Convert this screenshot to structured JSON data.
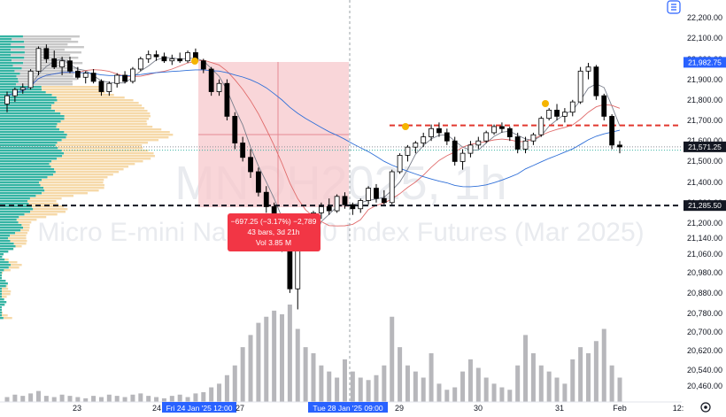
{
  "chart_title": "MNQH2025, 1h",
  "chart_subtitle": "Micro E-mini Nasdaq-100 Index Futures (Mar 2025)",
  "colors": {
    "up": "#ffffff",
    "down": "#000000",
    "candle_outline": "#000000",
    "volume": "#b7b7bb",
    "profile_teal": "#35b4a3",
    "profile_cream": "#f6d9a9",
    "profile_grey": "#c8c8c8",
    "range_box": "#f7c8cc",
    "range_label_bg": "#f23645",
    "red_level": "#e2372f",
    "black_level": "#131722",
    "price_tag": "#2962ff",
    "dashed_cursor": "#9aa0a6"
  },
  "price_axis": {
    "ticks": [
      "22,200.00",
      "22,100.00",
      "22,000.00",
      "21,900.00",
      "21,800.00",
      "21,700.00",
      "21,600.00",
      "21,500.00",
      "21,400.00",
      "21,300.00",
      "21,200.00",
      "21,140.00",
      "21,060.00",
      "20,980.00",
      "20,880.00",
      "20,780.00",
      "20,700.00",
      "20,620.00",
      "20,540.00",
      "20,460.00"
    ],
    "tags": [
      {
        "label": "21,982.75",
        "price": 21982.75
      },
      {
        "label": "21,571.25",
        "price": 21571.25
      },
      {
        "label": "21,285.50",
        "price": 21285.5
      }
    ]
  },
  "time_axis": {
    "labels": [
      "23",
      "24",
      "27",
      "29",
      "30",
      "31",
      "Feb",
      "12:"
    ],
    "highlight_start": "Fri 24 Jan '25   12:00",
    "highlight_end": "Tue 28 Jan '25   09:00"
  },
  "measure_label": {
    "line1": "−697.25 (−3.17%) −2,789",
    "line2": "43 bars, 3d 21h",
    "line3": "Vol 3.85 M"
  },
  "chart_data": {
    "type": "candlestick",
    "title": "MNQH2025, 1h",
    "subtitle": "Micro E-mini Nasdaq-100 Index Futures (Mar 2025)",
    "y_range": [
      20400,
      22250
    ],
    "levels": [
      {
        "price": 21676,
        "style": "dashed",
        "color": "red"
      },
      {
        "price": 21285.5,
        "style": "dashed",
        "color": "black"
      },
      {
        "price": 21571.25,
        "style": "dotted",
        "color": "grey"
      },
      {
        "price": 21555,
        "style": "dotted",
        "color": "teal"
      }
    ],
    "candles": [
      [
        21780,
        21840,
        21740,
        21820
      ],
      [
        21820,
        21860,
        21790,
        21850
      ],
      [
        21850,
        21880,
        21830,
        21860
      ],
      [
        21860,
        21950,
        21850,
        21940
      ],
      [
        21940,
        22060,
        21920,
        22050
      ],
      [
        22050,
        22070,
        21980,
        22000
      ],
      [
        22000,
        22040,
        21950,
        21960
      ],
      [
        21960,
        22010,
        21920,
        21990
      ],
      [
        21990,
        22010,
        21930,
        21940
      ],
      [
        21940,
        21960,
        21900,
        21910
      ],
      [
        21910,
        21940,
        21880,
        21930
      ],
      [
        21930,
        21950,
        21880,
        21890
      ],
      [
        21890,
        21900,
        21820,
        21840
      ],
      [
        21840,
        21890,
        21820,
        21880
      ],
      [
        21880,
        21930,
        21860,
        21920
      ],
      [
        21920,
        21940,
        21880,
        21890
      ],
      [
        21890,
        21960,
        21880,
        21950
      ],
      [
        21950,
        22010,
        21940,
        22000
      ],
      [
        22000,
        22040,
        21980,
        22020
      ],
      [
        22020,
        22040,
        21990,
        22010
      ],
      [
        22010,
        22030,
        21980,
        21990
      ],
      [
        21990,
        22020,
        21970,
        22000
      ],
      [
        22000,
        22030,
        21980,
        21990
      ],
      [
        21990,
        22040,
        21980,
        22030
      ],
      [
        22030,
        22050,
        21980,
        21990
      ],
      [
        21990,
        22000,
        21930,
        21950
      ],
      [
        21950,
        21960,
        21820,
        21840
      ],
      [
        21840,
        21900,
        21820,
        21880
      ],
      [
        21880,
        21900,
        21700,
        21720
      ],
      [
        21720,
        21740,
        21560,
        21590
      ],
      [
        21590,
        21620,
        21500,
        21520
      ],
      [
        21520,
        21560,
        21420,
        21450
      ],
      [
        21450,
        21470,
        21330,
        21350
      ],
      [
        21350,
        21380,
        21250,
        21280
      ],
      [
        21280,
        21300,
        21180,
        21200
      ],
      [
        21200,
        21230,
        21060,
        21080
      ],
      [
        21080,
        21100,
        20860,
        20880
      ],
      [
        20880,
        21150,
        20780,
        21120
      ],
      [
        21120,
        21200,
        21080,
        21180
      ],
      [
        21180,
        21260,
        21150,
        21250
      ],
      [
        21250,
        21300,
        21220,
        21280
      ],
      [
        21280,
        21320,
        21240,
        21260
      ],
      [
        21260,
        21340,
        21250,
        21330
      ],
      [
        21330,
        21350,
        21270,
        21290
      ],
      [
        21290,
        21300,
        21240,
        21270
      ],
      [
        21270,
        21320,
        21250,
        21310
      ],
      [
        21310,
        21380,
        21290,
        21370
      ],
      [
        21370,
        21390,
        21300,
        21320
      ],
      [
        21320,
        21360,
        21290,
        21300
      ],
      [
        21300,
        21460,
        21290,
        21450
      ],
      [
        21450,
        21540,
        21440,
        21530
      ],
      [
        21530,
        21580,
        21500,
        21570
      ],
      [
        21570,
        21600,
        21540,
        21590
      ],
      [
        21590,
        21640,
        21570,
        21620
      ],
      [
        21620,
        21680,
        21600,
        21660
      ],
      [
        21660,
        21690,
        21620,
        21640
      ],
      [
        21640,
        21660,
        21580,
        21600
      ],
      [
        21600,
        21620,
        21480,
        21500
      ],
      [
        21500,
        21560,
        21460,
        21540
      ],
      [
        21540,
        21600,
        21520,
        21580
      ],
      [
        21580,
        21620,
        21560,
        21600
      ],
      [
        21600,
        21650,
        21590,
        21640
      ],
      [
        21640,
        21680,
        21630,
        21670
      ],
      [
        21670,
        21690,
        21640,
        21660
      ],
      [
        21660,
        21670,
        21600,
        21620
      ],
      [
        21620,
        21640,
        21540,
        21560
      ],
      [
        21560,
        21620,
        21540,
        21600
      ],
      [
        21600,
        21640,
        21580,
        21630
      ],
      [
        21630,
        21720,
        21620,
        21710
      ],
      [
        21710,
        21760,
        21700,
        21750
      ],
      [
        21750,
        21780,
        21700,
        21720
      ],
      [
        21720,
        21760,
        21690,
        21740
      ],
      [
        21740,
        21800,
        21720,
        21790
      ],
      [
        21790,
        21960,
        21780,
        21940
      ],
      [
        21940,
        21980,
        21900,
        21960
      ],
      [
        21960,
        21970,
        21800,
        21820
      ],
      [
        21820,
        21830,
        21700,
        21720
      ],
      [
        21720,
        21730,
        21560,
        21580
      ],
      [
        21580,
        21600,
        21540,
        21571
      ]
    ],
    "volume": [
      4,
      6,
      5,
      7,
      9,
      5,
      4,
      6,
      5,
      4,
      3,
      5,
      4,
      6,
      5,
      4,
      6,
      7,
      5,
      4,
      3,
      5,
      6,
      4,
      7,
      8,
      12,
      15,
      22,
      30,
      45,
      55,
      65,
      70,
      75,
      72,
      80,
      60,
      45,
      40,
      30,
      25,
      20,
      35,
      25,
      20,
      18,
      22,
      30,
      70,
      45,
      30,
      25,
      20,
      40,
      15,
      10,
      12,
      25,
      35,
      28,
      20,
      15,
      12,
      10,
      30,
      55,
      40,
      30,
      25,
      20,
      15,
      35,
      45,
      40,
      50,
      60,
      30,
      20
    ]
  },
  "toolbar": {
    "settings_icon": "gear-icon",
    "top_button_icon": "layout-icon"
  }
}
